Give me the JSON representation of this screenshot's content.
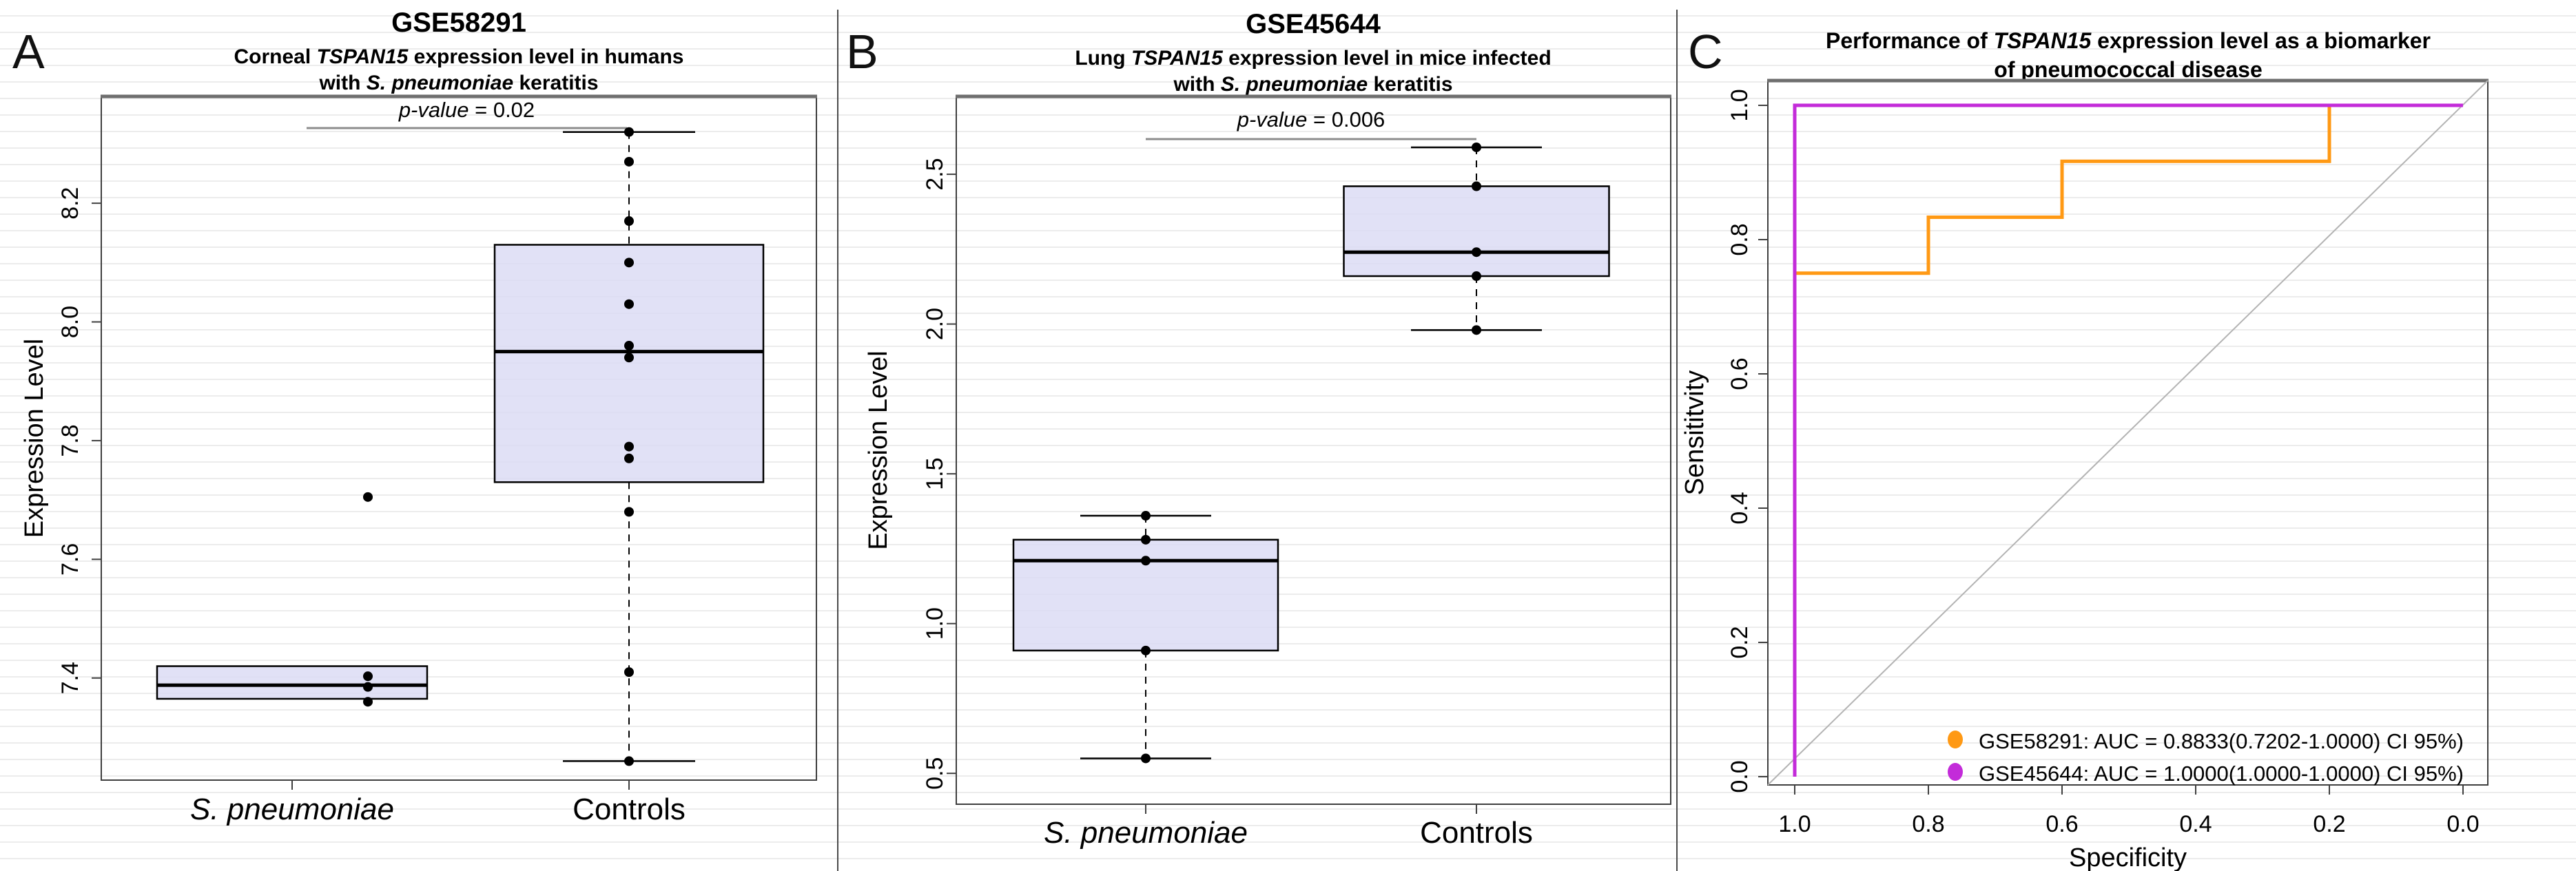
{
  "figure": {
    "panels": [
      {
        "id": "A",
        "label": "A"
      },
      {
        "id": "B",
        "label": "B"
      },
      {
        "id": "C",
        "label": "C"
      }
    ]
  },
  "colors": {
    "box_fill": "#dcdcf4",
    "box_stroke": "#000000",
    "median": "#000000",
    "point": "#000000",
    "roc_orange": "#FF9914",
    "roc_magenta": "#C32BD9",
    "diagonal": "#b3b3b3",
    "bracket": "#8c8c8c",
    "plot_border": "#3f3f3f",
    "plot_border_top": "#6e6e6e",
    "gridline": "#ececec",
    "text": "#000000"
  },
  "chart_data": [
    {
      "type": "boxplot",
      "panel": "A",
      "title": "GSE58291",
      "subtitle_lines": [
        [
          {
            "t": "Corneal "
          },
          {
            "t": "TSPAN15",
            "i": true
          },
          {
            "t": " expression level in humans"
          }
        ],
        [
          {
            "t": "with "
          },
          {
            "t": "S. pneumoniae",
            "i": true
          },
          {
            "t": " keratitis"
          }
        ]
      ],
      "pvalue_segments": [
        {
          "t": "p-value",
          "i": true
        },
        {
          "t": " = 0.02"
        }
      ],
      "ylabel": "Expression Level",
      "ylim": [
        7.228,
        8.38
      ],
      "yticks": [
        {
          "v": 7.4,
          "label": "7.4"
        },
        {
          "v": 7.6,
          "label": "7.6"
        },
        {
          "v": 7.8,
          "label": "7.8"
        },
        {
          "v": 8.0,
          "label": "8.0"
        },
        {
          "v": 8.2,
          "label": "8.2"
        }
      ],
      "categories": [
        "S. pneumoniae",
        "Controls"
      ],
      "groups": [
        {
          "name": "S. pneumoniae",
          "italic": true,
          "whislo": 7.365,
          "q1": 7.365,
          "med": 7.388,
          "q3": 7.42,
          "whishi": 7.42,
          "points": [
            7.403,
            7.385,
            7.36
          ],
          "outliers": [
            7.705
          ]
        },
        {
          "name": "Controls",
          "italic": false,
          "whislo": 7.26,
          "q1": 7.73,
          "med": 7.95,
          "q3": 8.13,
          "whishi": 8.32,
          "points": [
            8.32,
            8.27,
            8.17,
            8.1,
            8.03,
            7.96,
            7.94,
            7.79,
            7.77,
            7.68,
            7.41,
            7.26
          ],
          "outliers": []
        }
      ]
    },
    {
      "type": "boxplot",
      "panel": "B",
      "title": "GSE45644",
      "subtitle_lines": [
        [
          {
            "t": "Lung "
          },
          {
            "t": "TSPAN15",
            "i": true
          },
          {
            "t": " expression level in mice  infected"
          }
        ],
        [
          {
            "t": "with "
          },
          {
            "t": "S. pneumoniae",
            "i": true
          },
          {
            "t": " keratitis"
          }
        ]
      ],
      "pvalue_segments": [
        {
          "t": "p-value",
          "i": true
        },
        {
          "t": " = 0.006"
        }
      ],
      "ylabel": "Expression Level",
      "ylim": [
        0.397,
        2.76
      ],
      "yticks": [
        {
          "v": 0.5,
          "label": "0.5"
        },
        {
          "v": 1.0,
          "label": "1.0"
        },
        {
          "v": 1.5,
          "label": "1.5"
        },
        {
          "v": 2.0,
          "label": "2.0"
        },
        {
          "v": 2.5,
          "label": "2.5"
        }
      ],
      "categories": [
        "S. pneumoniae",
        "Controls"
      ],
      "groups": [
        {
          "name": "S. pneumoniae",
          "italic": true,
          "whislo": 0.55,
          "q1": 0.91,
          "med": 1.21,
          "q3": 1.28,
          "whishi": 1.36,
          "points": [
            1.36,
            1.28,
            1.21,
            0.91,
            0.55
          ],
          "outliers": []
        },
        {
          "name": "Controls",
          "italic": false,
          "whislo": 1.98,
          "q1": 2.16,
          "med": 2.24,
          "q3": 2.46,
          "whishi": 2.59,
          "points": [
            2.59,
            2.46,
            2.24,
            2.16,
            1.98
          ],
          "outliers": []
        }
      ]
    },
    {
      "type": "line",
      "panel": "C",
      "title_lines": [
        [
          {
            "t": "Performance of "
          },
          {
            "t": "TSPAN15",
            "i": true
          },
          {
            "t": " expression level as a biomarker"
          }
        ],
        [
          {
            "t": "of pneumococcal disease"
          }
        ]
      ],
      "xlabel": "Specificity",
      "ylabel": "Sensititvity",
      "x_axis_reversed": true,
      "xlim": [
        1.0,
        0.0
      ],
      "ylim": [
        0.0,
        1.0
      ],
      "xticks": [
        {
          "v": 1.0,
          "label": "1.0"
        },
        {
          "v": 0.8,
          "label": "0.8"
        },
        {
          "v": 0.6,
          "label": "0.6"
        },
        {
          "v": 0.4,
          "label": "0.4"
        },
        {
          "v": 0.2,
          "label": "0.2"
        },
        {
          "v": 0.0,
          "label": "0.0"
        }
      ],
      "yticks": [
        {
          "v": 0.0,
          "label": "0.0"
        },
        {
          "v": 0.2,
          "label": "0.2"
        },
        {
          "v": 0.4,
          "label": "0.4"
        },
        {
          "v": 0.6,
          "label": "0.6"
        },
        {
          "v": 0.8,
          "label": "0.8"
        },
        {
          "v": 1.0,
          "label": "1.0"
        }
      ],
      "diagonal_reference_line": true,
      "series": [
        {
          "name": "GSE58291",
          "color_key": "roc_orange",
          "specificity": [
            1.0,
            0.8,
            0.8,
            0.6,
            0.6,
            0.2,
            0.2,
            0.0
          ],
          "sensitivity": [
            0.75,
            0.75,
            0.8333,
            0.8333,
            0.9167,
            0.9167,
            1.0,
            1.0
          ]
        },
        {
          "name": "GSE45644",
          "color_key": "roc_magenta",
          "specificity": [
            1.0,
            1.0,
            0.0
          ],
          "sensitivity": [
            0.0,
            1.0,
            1.0
          ]
        }
      ],
      "legend": [
        {
          "label": "GSE58291: AUC = 0.8833(0.7202-1.0000) CI 95%)",
          "color_key": "roc_orange"
        },
        {
          "label": "GSE45644: AUC = 1.0000(1.0000-1.0000) CI 95%)",
          "color_key": "roc_magenta"
        }
      ]
    }
  ]
}
